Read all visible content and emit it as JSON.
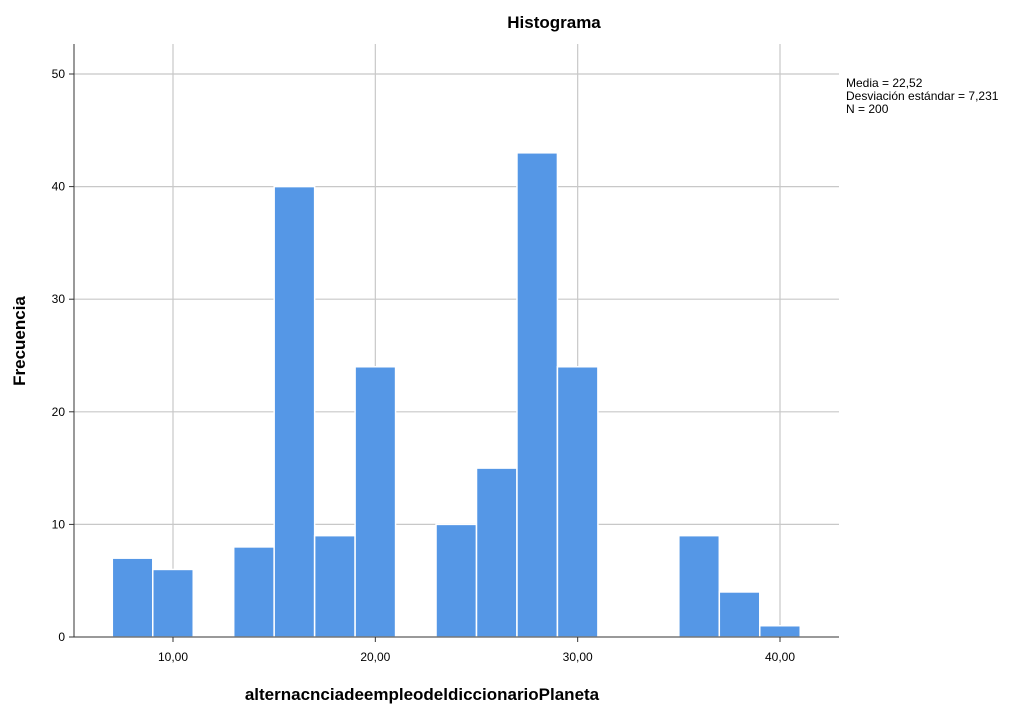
{
  "chart_data": {
    "type": "bar",
    "title": "Histograma",
    "xlabel": "alternacnciadeempleodeldiccionarioPlaneta",
    "ylabel": "Frecuencia",
    "bin_width": 2,
    "bins": [
      {
        "start": 7,
        "end": 9,
        "value": 7
      },
      {
        "start": 9,
        "end": 11,
        "value": 6
      },
      {
        "start": 11,
        "end": 13,
        "value": 0
      },
      {
        "start": 13,
        "end": 15,
        "value": 8
      },
      {
        "start": 15,
        "end": 17,
        "value": 40
      },
      {
        "start": 17,
        "end": 19,
        "value": 9
      },
      {
        "start": 19,
        "end": 21,
        "value": 24
      },
      {
        "start": 21,
        "end": 23,
        "value": 0
      },
      {
        "start": 23,
        "end": 25,
        "value": 10
      },
      {
        "start": 25,
        "end": 27,
        "value": 15
      },
      {
        "start": 27,
        "end": 29,
        "value": 43
      },
      {
        "start": 29,
        "end": 31,
        "value": 24
      },
      {
        "start": 31,
        "end": 33,
        "value": 0
      },
      {
        "start": 33,
        "end": 35,
        "value": 0
      },
      {
        "start": 35,
        "end": 37,
        "value": 9
      },
      {
        "start": 37,
        "end": 39,
        "value": 4
      },
      {
        "start": 39,
        "end": 41,
        "value": 1
      }
    ],
    "xlim": [
      2,
      42
    ],
    "ylim": [
      0,
      52
    ],
    "x_ticks": [
      10,
      20,
      30,
      40
    ],
    "x_tick_labels": [
      "10,00",
      "20,00",
      "30,00",
      "40,00"
    ],
    "y_ticks": [
      0,
      10,
      20,
      30,
      40,
      50
    ],
    "y_tick_labels": [
      "0",
      "10",
      "20",
      "30",
      "40",
      "50"
    ],
    "grid": true,
    "bar_color": "#5597E6",
    "stats_lines": [
      "Media = 22,52",
      "Desviación estándar = 7,231",
      "N = 200"
    ]
  }
}
